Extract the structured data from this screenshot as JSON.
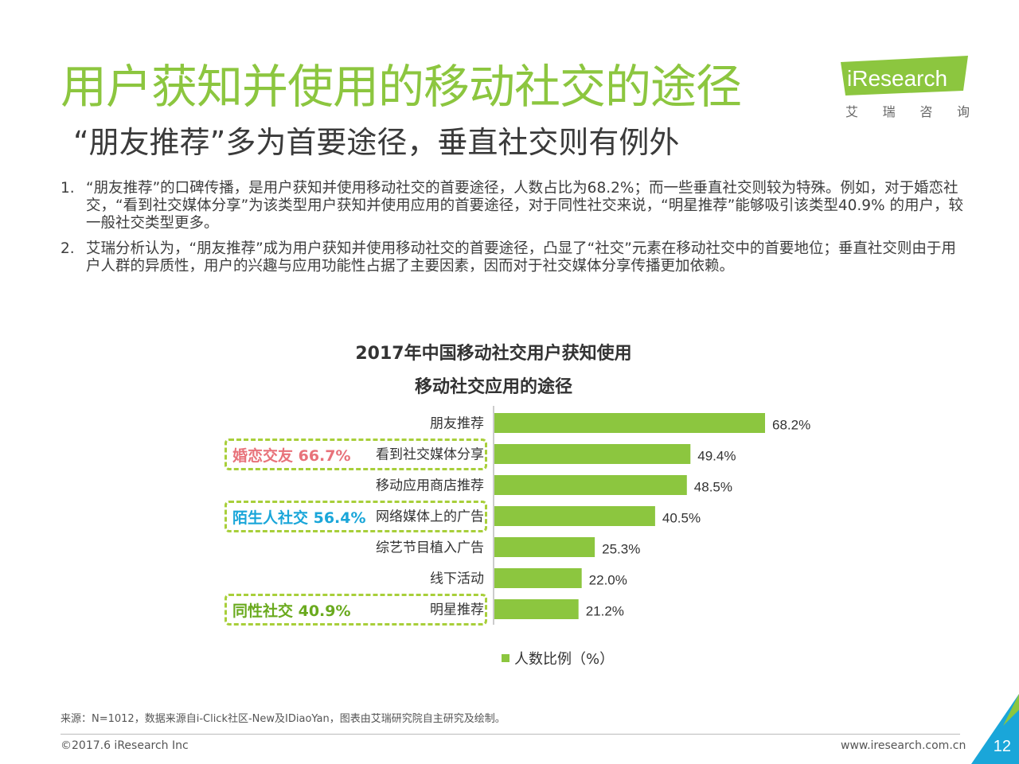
{
  "header": {
    "title": "用户获知并使用的移动社交的途径",
    "subtitle": "“朋友推荐”多为首要途径，垂直社交则有例外",
    "logo_text": "iResearch",
    "logo_sub": [
      "艾",
      "瑞",
      "咨",
      "询"
    ]
  },
  "body": {
    "points": [
      {
        "num": "1.",
        "text": "“朋友推荐”的口碑传播，是用户获知并使用移动社交的首要途径，人数占比为68.2%；而一些垂直社交则较为特殊。例如，对于婚恋社交，“看到社交媒体分享”为该类型用户获知并使用应用的首要途径，对于同性社交来说，“明星推荐”能够吸引该类型40.9% 的用户，较一般社交类型更多。"
      },
      {
        "num": "2.",
        "text": "艾瑞分析认为，“朋友推荐”成为用户获知并使用移动社交的首要途径，凸显了“社交”元素在移动社交中的首要地位；垂直社交则由于用户人群的异质性，用户的兴趣与应用功能性占据了主要因素，因而对于社交媒体分享传播更加依赖。"
      }
    ]
  },
  "chart_data": {
    "type": "bar",
    "orientation": "horizontal",
    "title": "2017年中国移动社交用户获知使用",
    "subtitle": "移动社交应用的途径",
    "categories": [
      "朋友推荐",
      "看到社交媒体分享",
      "移动应用商店推荐",
      "网络媒体上的广告",
      "综艺节目植入广告",
      "线下活动",
      "明星推荐"
    ],
    "series": [
      {
        "name": "人数比例（%）",
        "values": [
          68.2,
          49.4,
          48.5,
          40.5,
          25.3,
          22.0,
          21.2
        ],
        "color": "#8cc63f"
      }
    ],
    "data_labels": [
      "68.2%",
      "49.4%",
      "48.5%",
      "40.5%",
      "25.3%",
      "22.0%",
      "21.2%"
    ],
    "xlim": [
      0,
      70
    ],
    "grid": false,
    "legend_position": "bottom",
    "highlights": [
      {
        "label": "婚恋交友 66.7%",
        "category": "看到社交媒体分享",
        "color": "#e8727a"
      },
      {
        "label": "陌生人社交 56.4%",
        "category": "网络媒体上的广告",
        "color": "#1aa6d9"
      },
      {
        "label": "同性社交 40.9%",
        "category": "明星推荐",
        "color": "#6aaa1e"
      }
    ]
  },
  "footer": {
    "source": "来源：N=1012，数据来源自i-Click社区-New及IDiaoYan，图表由艾瑞研究院自主研究及绘制。",
    "copyright": "©2017.6 iResearch Inc",
    "website": "www.iresearch.com.cn",
    "page": "12"
  },
  "colors": {
    "accent": "#8cc63f",
    "corner": "#1aa6d9"
  }
}
